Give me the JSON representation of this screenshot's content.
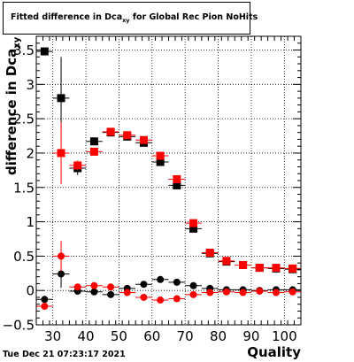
{
  "chart_data": {
    "type": "scatter",
    "title_main": "Fitted difference in Dca",
    "title_sub": "xy",
    "title_rest": " for Global Rec Pion NoHits",
    "xlabel": "Quality",
    "ylabel_main": "difference in Dca",
    "ylabel_sub": "xy",
    "xlim": [
      25,
      105
    ],
    "ylim": [
      -0.5,
      3.7
    ],
    "xticks": [
      30,
      40,
      50,
      60,
      70,
      80,
      90,
      100
    ],
    "yticks": [
      -0.5,
      0,
      0.5,
      1,
      1.5,
      2,
      2.5,
      3,
      3.5
    ],
    "ytick_labels": [
      "−0.5",
      "0",
      "0.5",
      "1",
      "1.5",
      "2",
      "2.5",
      "3",
      "3.5"
    ],
    "grid": true,
    "series": [
      {
        "marker": "square",
        "color": "#000000",
        "points": [
          {
            "x": 27.5,
            "y": 3.48,
            "err": 0.0
          },
          {
            "x": 32.5,
            "y": 2.8,
            "err": 0.6
          },
          {
            "x": 37.5,
            "y": 1.78,
            "err": 0.1
          },
          {
            "x": 42.5,
            "y": 2.17,
            "err": 0.04
          },
          {
            "x": 47.5,
            "y": 2.3,
            "err": 0.03
          },
          {
            "x": 52.5,
            "y": 2.24,
            "err": 0.03
          },
          {
            "x": 57.5,
            "y": 2.15,
            "err": 0.03
          },
          {
            "x": 62.5,
            "y": 1.87,
            "err": 0.03
          },
          {
            "x": 67.5,
            "y": 1.53,
            "err": 0.03
          },
          {
            "x": 72.5,
            "y": 0.9,
            "err": 0.03
          },
          {
            "x": 77.5,
            "y": 0.54,
            "err": 0.02
          },
          {
            "x": 82.5,
            "y": 0.42,
            "err": 0.02
          },
          {
            "x": 87.5,
            "y": 0.37,
            "err": 0.02
          },
          {
            "x": 92.5,
            "y": 0.33,
            "err": 0.02
          },
          {
            "x": 97.5,
            "y": 0.32,
            "err": 0.02
          },
          {
            "x": 102.5,
            "y": 0.31,
            "err": 0.02
          }
        ]
      },
      {
        "marker": "square",
        "color": "#ff0000",
        "points": [
          {
            "x": 32.5,
            "y": 2.0,
            "err": 0.45
          },
          {
            "x": 37.5,
            "y": 1.82,
            "err": 0.07
          },
          {
            "x": 42.5,
            "y": 2.02,
            "err": 0.04
          },
          {
            "x": 47.5,
            "y": 2.31,
            "err": 0.03
          },
          {
            "x": 52.5,
            "y": 2.26,
            "err": 0.03
          },
          {
            "x": 57.5,
            "y": 2.19,
            "err": 0.03
          },
          {
            "x": 62.5,
            "y": 1.96,
            "err": 0.03
          },
          {
            "x": 67.5,
            "y": 1.62,
            "err": 0.03
          },
          {
            "x": 72.5,
            "y": 0.98,
            "err": 0.03
          },
          {
            "x": 77.5,
            "y": 0.55,
            "err": 0.02
          },
          {
            "x": 82.5,
            "y": 0.43,
            "err": 0.02
          },
          {
            "x": 87.5,
            "y": 0.37,
            "err": 0.02
          },
          {
            "x": 92.5,
            "y": 0.33,
            "err": 0.02
          },
          {
            "x": 97.5,
            "y": 0.33,
            "err": 0.02
          },
          {
            "x": 102.5,
            "y": 0.32,
            "err": 0.02
          }
        ]
      },
      {
        "marker": "circle",
        "color": "#000000",
        "points": [
          {
            "x": 27.5,
            "y": -0.13,
            "err": 0.05
          },
          {
            "x": 32.5,
            "y": 0.24,
            "err": 0.2
          },
          {
            "x": 37.5,
            "y": -0.01,
            "err": 0.05
          },
          {
            "x": 42.5,
            "y": -0.02,
            "err": 0.03
          },
          {
            "x": 47.5,
            "y": -0.06,
            "err": 0.02
          },
          {
            "x": 52.5,
            "y": 0.03,
            "err": 0.02
          },
          {
            "x": 57.5,
            "y": 0.09,
            "err": 0.02
          },
          {
            "x": 62.5,
            "y": 0.16,
            "err": 0.02
          },
          {
            "x": 67.5,
            "y": 0.12,
            "err": 0.02
          },
          {
            "x": 72.5,
            "y": 0.07,
            "err": 0.02
          },
          {
            "x": 77.5,
            "y": 0.03,
            "err": 0.02
          },
          {
            "x": 82.5,
            "y": 0.01,
            "err": 0.02
          },
          {
            "x": 87.5,
            "y": 0.01,
            "err": 0.02
          },
          {
            "x": 92.5,
            "y": 0.0,
            "err": 0.02
          },
          {
            "x": 97.5,
            "y": 0.01,
            "err": 0.02
          },
          {
            "x": 102.5,
            "y": 0.01,
            "err": 0.02
          }
        ]
      },
      {
        "marker": "circle",
        "color": "#ff0000",
        "points": [
          {
            "x": 27.5,
            "y": -0.23,
            "err": 0.05
          },
          {
            "x": 32.5,
            "y": 0.5,
            "err": 0.22
          },
          {
            "x": 37.5,
            "y": 0.05,
            "err": 0.05
          },
          {
            "x": 42.5,
            "y": 0.07,
            "err": 0.03
          },
          {
            "x": 47.5,
            "y": 0.05,
            "err": 0.02
          },
          {
            "x": 52.5,
            "y": -0.03,
            "err": 0.02
          },
          {
            "x": 57.5,
            "y": -0.1,
            "err": 0.02
          },
          {
            "x": 62.5,
            "y": -0.14,
            "err": 0.02
          },
          {
            "x": 67.5,
            "y": -0.12,
            "err": 0.02
          },
          {
            "x": 72.5,
            "y": -0.06,
            "err": 0.02
          },
          {
            "x": 77.5,
            "y": -0.03,
            "err": 0.02
          },
          {
            "x": 82.5,
            "y": -0.02,
            "err": 0.02
          },
          {
            "x": 87.5,
            "y": -0.03,
            "err": 0.02
          },
          {
            "x": 92.5,
            "y": -0.01,
            "err": 0.02
          },
          {
            "x": 97.5,
            "y": -0.03,
            "err": 0.02
          },
          {
            "x": 102.5,
            "y": -0.02,
            "err": 0.02
          }
        ]
      }
    ]
  },
  "footer": {
    "timestamp": "Tue Dec 21 07:23:17 2021"
  }
}
